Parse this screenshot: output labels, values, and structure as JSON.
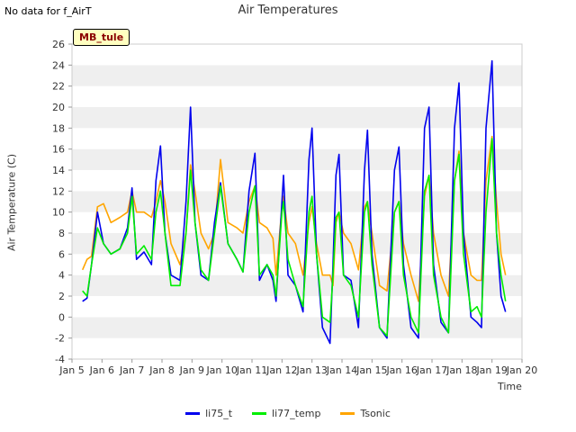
{
  "header": {
    "no_data_note": "No data for f_AirT",
    "site_label": "MB_tule"
  },
  "chart_data": {
    "type": "line",
    "title": "Air Temperatures",
    "xlabel": "Time",
    "ylabel": "Air Temperature (C)",
    "x_tick_labels": [
      "Jan 5",
      "Jan 6",
      "Jan 7",
      "Jan 8",
      "Jan 9",
      "Jan 10",
      "Jan 11",
      "Jan 12",
      "Jan 13",
      "Jan 14",
      "Jan 15",
      "Jan 16",
      "Jan 17",
      "Jan 18",
      "Jan 19",
      "Jan 20"
    ],
    "y_tick_labels": [
      "-4",
      "-2",
      "0",
      "2",
      "4",
      "6",
      "8",
      "10",
      "12",
      "14",
      "16",
      "18",
      "20",
      "22",
      "24",
      "26"
    ],
    "xlim": [
      5,
      20
    ],
    "ylim": [
      -4,
      26
    ],
    "grid": "horizontal bands",
    "legend_position": "bottom",
    "series": [
      {
        "name": "li75_t",
        "color": "#0000ee",
        "points": [
          [
            5.35,
            1.5
          ],
          [
            5.5,
            1.8
          ],
          [
            5.65,
            5
          ],
          [
            5.85,
            10
          ],
          [
            6.05,
            7
          ],
          [
            6.3,
            6
          ],
          [
            6.6,
            6.5
          ],
          [
            6.85,
            8.5
          ],
          [
            7.0,
            12.3
          ],
          [
            7.15,
            5.5
          ],
          [
            7.4,
            6.2
          ],
          [
            7.65,
            5
          ],
          [
            7.8,
            13
          ],
          [
            7.95,
            16.3
          ],
          [
            8.1,
            8
          ],
          [
            8.3,
            4
          ],
          [
            8.6,
            3.5
          ],
          [
            8.8,
            11
          ],
          [
            8.95,
            20
          ],
          [
            9.1,
            9
          ],
          [
            9.3,
            4
          ],
          [
            9.55,
            3.5
          ],
          [
            9.75,
            9
          ],
          [
            9.95,
            12.8
          ],
          [
            10.2,
            7
          ],
          [
            10.5,
            5.5
          ],
          [
            10.7,
            4.3
          ],
          [
            10.9,
            12
          ],
          [
            11.1,
            15.6
          ],
          [
            11.25,
            3.5
          ],
          [
            11.5,
            5
          ],
          [
            11.7,
            3.5
          ],
          [
            11.8,
            1.5
          ],
          [
            12.0,
            11
          ],
          [
            12.05,
            13.5
          ],
          [
            12.2,
            4
          ],
          [
            12.45,
            3
          ],
          [
            12.7,
            0.5
          ],
          [
            12.9,
            15
          ],
          [
            13.0,
            18
          ],
          [
            13.15,
            6
          ],
          [
            13.35,
            -1
          ],
          [
            13.6,
            -2.5
          ],
          [
            13.7,
            5
          ],
          [
            13.8,
            13.5
          ],
          [
            13.9,
            15.5
          ],
          [
            14.05,
            4
          ],
          [
            14.3,
            3.5
          ],
          [
            14.55,
            -1
          ],
          [
            14.75,
            14
          ],
          [
            14.85,
            17.8
          ],
          [
            15.0,
            6
          ],
          [
            15.25,
            -1
          ],
          [
            15.5,
            -2
          ],
          [
            15.75,
            14
          ],
          [
            15.9,
            16.2
          ],
          [
            16.05,
            5
          ],
          [
            16.3,
            -1
          ],
          [
            16.55,
            -2
          ],
          [
            16.75,
            18
          ],
          [
            16.9,
            20
          ],
          [
            17.05,
            5
          ],
          [
            17.3,
            -0.5
          ],
          [
            17.55,
            -1.5
          ],
          [
            17.75,
            18
          ],
          [
            17.9,
            22.3
          ],
          [
            18.05,
            8
          ],
          [
            18.3,
            0
          ],
          [
            18.5,
            -0.5
          ],
          [
            18.65,
            -1
          ],
          [
            18.8,
            18
          ],
          [
            19.0,
            24.4
          ],
          [
            19.15,
            8
          ],
          [
            19.3,
            2
          ],
          [
            19.45,
            0.5
          ]
        ]
      },
      {
        "name": "li77_temp",
        "color": "#00ee00",
        "points": [
          [
            5.35,
            2.5
          ],
          [
            5.5,
            2
          ],
          [
            5.65,
            5
          ],
          [
            5.85,
            8.5
          ],
          [
            6.05,
            7
          ],
          [
            6.3,
            6
          ],
          [
            6.6,
            6.5
          ],
          [
            6.85,
            8
          ],
          [
            7.0,
            11.5
          ],
          [
            7.15,
            6
          ],
          [
            7.4,
            6.8
          ],
          [
            7.65,
            5.5
          ],
          [
            7.8,
            10
          ],
          [
            7.95,
            12
          ],
          [
            8.1,
            8
          ],
          [
            8.3,
            3
          ],
          [
            8.6,
            3
          ],
          [
            8.8,
            8
          ],
          [
            8.95,
            14
          ],
          [
            9.1,
            9
          ],
          [
            9.3,
            4.5
          ],
          [
            9.55,
            3.5
          ],
          [
            9.75,
            8
          ],
          [
            9.95,
            12.5
          ],
          [
            10.2,
            7
          ],
          [
            10.5,
            5.5
          ],
          [
            10.7,
            4.3
          ],
          [
            10.9,
            10
          ],
          [
            11.1,
            12.5
          ],
          [
            11.25,
            4
          ],
          [
            11.5,
            5
          ],
          [
            11.7,
            4
          ],
          [
            11.8,
            2
          ],
          [
            12.0,
            10
          ],
          [
            12.05,
            11
          ],
          [
            12.2,
            5.5
          ],
          [
            12.45,
            3
          ],
          [
            12.7,
            1
          ],
          [
            12.9,
            10
          ],
          [
            13.0,
            11.5
          ],
          [
            13.15,
            6
          ],
          [
            13.35,
            0
          ],
          [
            13.6,
            -0.5
          ],
          [
            13.7,
            4
          ],
          [
            13.8,
            9.5
          ],
          [
            13.9,
            10
          ],
          [
            14.05,
            4
          ],
          [
            14.3,
            3
          ],
          [
            14.55,
            0
          ],
          [
            14.75,
            10
          ],
          [
            14.85,
            11
          ],
          [
            15.0,
            5
          ],
          [
            15.25,
            -1
          ],
          [
            15.5,
            -1.8
          ],
          [
            15.75,
            10
          ],
          [
            15.9,
            11
          ],
          [
            16.05,
            4
          ],
          [
            16.3,
            0
          ],
          [
            16.55,
            -1.5
          ],
          [
            16.75,
            12
          ],
          [
            16.9,
            13.5
          ],
          [
            17.05,
            4
          ],
          [
            17.3,
            0
          ],
          [
            17.55,
            -1.5
          ],
          [
            17.75,
            13
          ],
          [
            17.9,
            15.5
          ],
          [
            18.05,
            6
          ],
          [
            18.3,
            0.5
          ],
          [
            18.5,
            1
          ],
          [
            18.65,
            0
          ],
          [
            18.8,
            10
          ],
          [
            19.0,
            17
          ],
          [
            19.15,
            8
          ],
          [
            19.3,
            4
          ],
          [
            19.45,
            1.5
          ]
        ]
      },
      {
        "name": "Tsonic",
        "color": "#ffa500",
        "points": [
          [
            5.35,
            4.5
          ],
          [
            5.5,
            5.5
          ],
          [
            5.65,
            5.8
          ],
          [
            5.85,
            10.5
          ],
          [
            6.05,
            10.8
          ],
          [
            6.3,
            9
          ],
          [
            6.6,
            9.5
          ],
          [
            6.85,
            10
          ],
          [
            7.0,
            12
          ],
          [
            7.15,
            10
          ],
          [
            7.4,
            10
          ],
          [
            7.65,
            9.5
          ],
          [
            7.8,
            11
          ],
          [
            7.95,
            13
          ],
          [
            8.1,
            11
          ],
          [
            8.3,
            7
          ],
          [
            8.6,
            5
          ],
          [
            8.8,
            8
          ],
          [
            8.95,
            14.5
          ],
          [
            9.1,
            12
          ],
          [
            9.3,
            8
          ],
          [
            9.55,
            6.5
          ],
          [
            9.75,
            8
          ],
          [
            9.95,
            15
          ],
          [
            10.2,
            9
          ],
          [
            10.5,
            8.5
          ],
          [
            10.7,
            8
          ],
          [
            10.9,
            11
          ],
          [
            11.1,
            12.5
          ],
          [
            11.25,
            9
          ],
          [
            11.5,
            8.5
          ],
          [
            11.7,
            7.5
          ],
          [
            11.8,
            4
          ],
          [
            12.0,
            10.5
          ],
          [
            12.05,
            11.5
          ],
          [
            12.2,
            8
          ],
          [
            12.45,
            7
          ],
          [
            12.7,
            4
          ],
          [
            12.9,
            9
          ],
          [
            13.0,
            10.5
          ],
          [
            13.15,
            7
          ],
          [
            13.35,
            4
          ],
          [
            13.6,
            4
          ],
          [
            13.7,
            3
          ],
          [
            13.8,
            9
          ],
          [
            13.9,
            10
          ],
          [
            14.05,
            8
          ],
          [
            14.3,
            7
          ],
          [
            14.55,
            4.5
          ],
          [
            14.75,
            10.5
          ],
          [
            14.85,
            11
          ],
          [
            15.0,
            8
          ],
          [
            15.25,
            3
          ],
          [
            15.5,
            2.5
          ],
          [
            15.75,
            10
          ],
          [
            15.9,
            11
          ],
          [
            16.05,
            7
          ],
          [
            16.3,
            4
          ],
          [
            16.55,
            1.5
          ],
          [
            16.75,
            11.5
          ],
          [
            16.9,
            13.5
          ],
          [
            17.05,
            8
          ],
          [
            17.3,
            4
          ],
          [
            17.55,
            2
          ],
          [
            17.75,
            13
          ],
          [
            17.9,
            15.8
          ],
          [
            18.05,
            8
          ],
          [
            18.3,
            4
          ],
          [
            18.5,
            3.5
          ],
          [
            18.65,
            3.5
          ],
          [
            18.8,
            13
          ],
          [
            19.0,
            17.2
          ],
          [
            19.15,
            11
          ],
          [
            19.3,
            6
          ],
          [
            19.45,
            4
          ]
        ]
      }
    ]
  }
}
